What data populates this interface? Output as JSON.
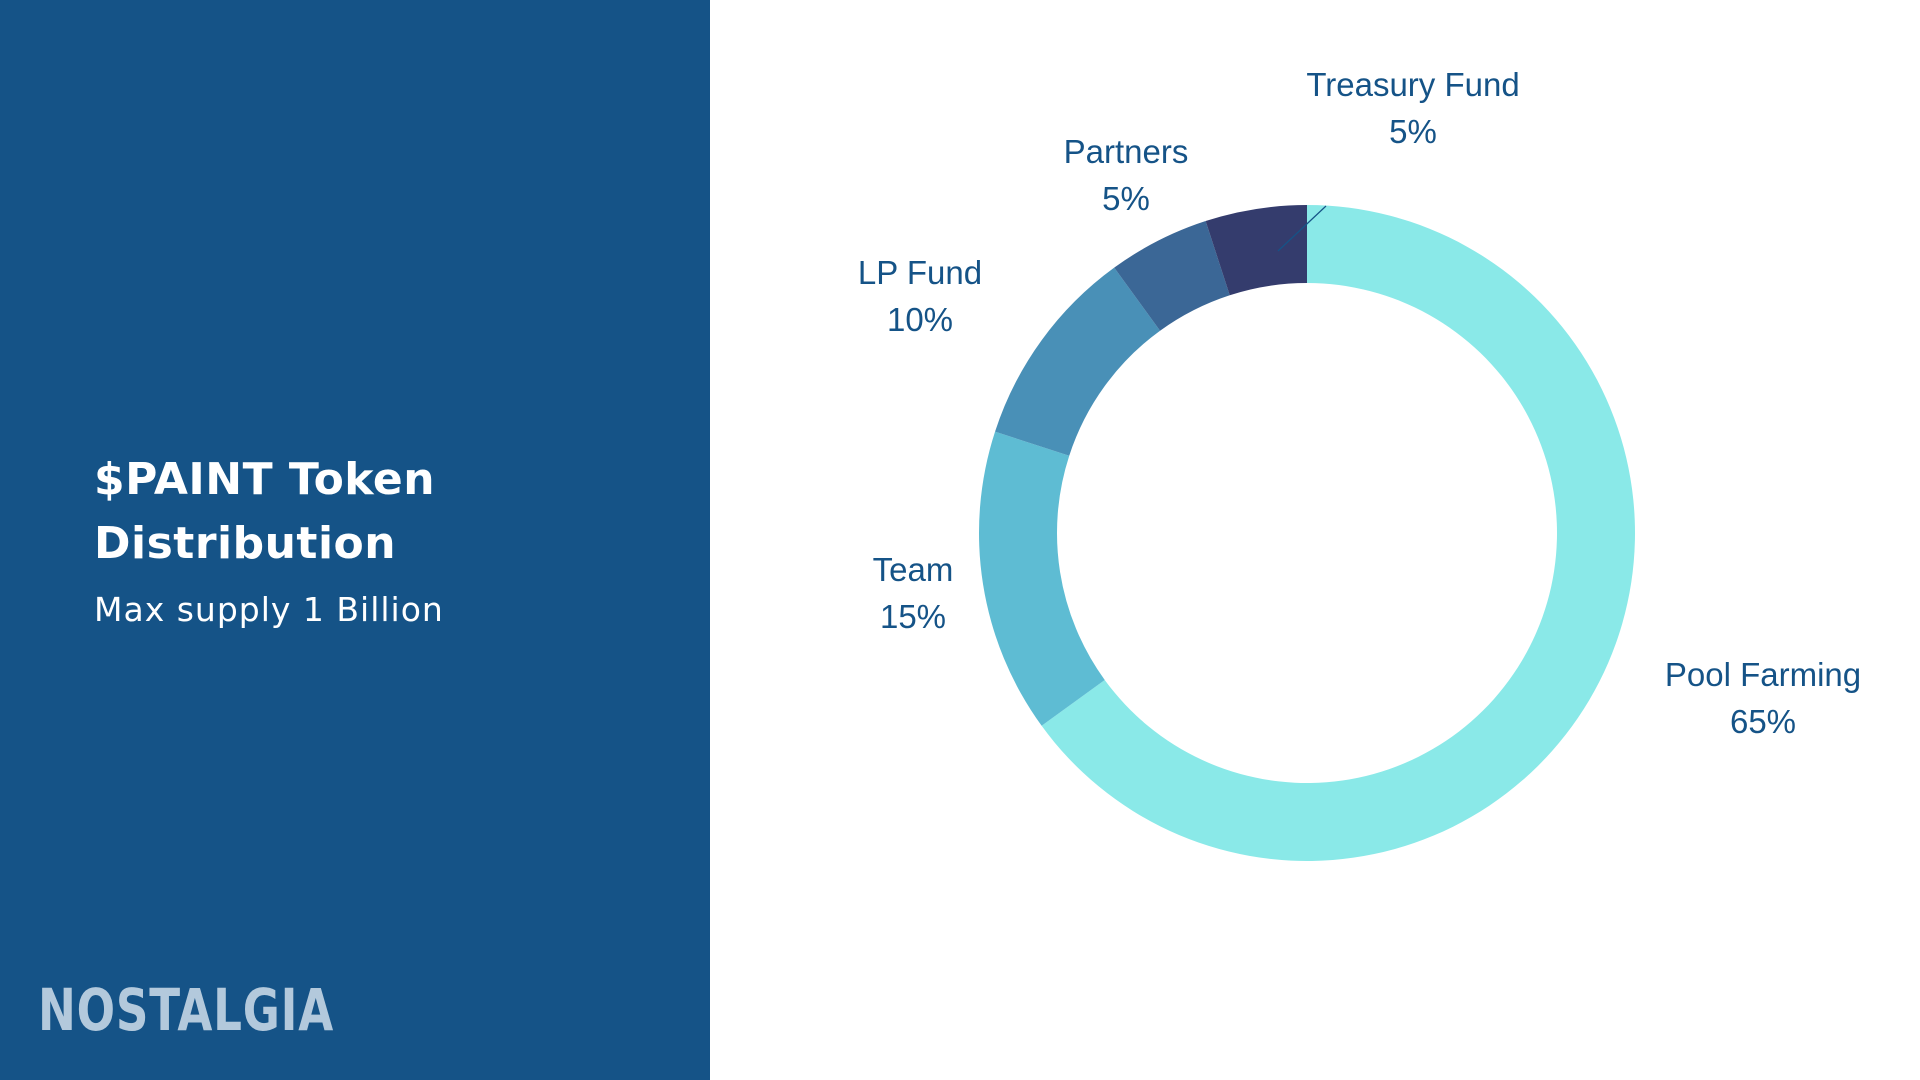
{
  "slide": {
    "title_line1": "$PAINT Token",
    "title_line2": "Distribution",
    "subtitle": "Max supply 1 Billion",
    "brand": "NOSTALGIA"
  },
  "colors": {
    "panel": "#155387",
    "text_dark": "#155387",
    "brand": "#b3c9dc"
  },
  "chart_data": {
    "type": "pie",
    "variant": "donut",
    "title": "$PAINT Token Distribution",
    "categories": [
      "Pool Farming",
      "Team",
      "LP Fund",
      "Partners",
      "Treasury Fund"
    ],
    "values": [
      65,
      15,
      10,
      5,
      5
    ],
    "value_labels": [
      "65%",
      "15%",
      "10%",
      "5%",
      "5%"
    ],
    "colors": [
      "#8ae9e8",
      "#5ebcd3",
      "#4990b7",
      "#3b6796",
      "#343c6d"
    ],
    "start": "top",
    "direction": "clockwise",
    "legend": "none"
  }
}
